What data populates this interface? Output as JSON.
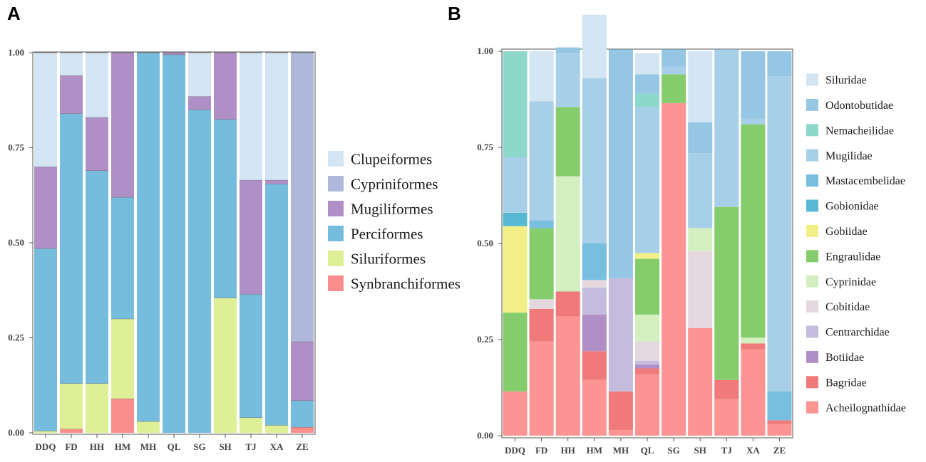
{
  "chart_data": [
    {
      "panel": "A",
      "type": "bar",
      "stacked": true,
      "categories": [
        "DDQ",
        "FD",
        "HH",
        "HM",
        "MH",
        "QL",
        "SG",
        "SH",
        "TJ",
        "XA",
        "ZE"
      ],
      "yticks": [
        "0.00",
        "0.25",
        "0.50",
        "0.75",
        "1.00"
      ],
      "ylim": [
        0,
        1
      ],
      "series": [
        {
          "name": "Synbranchiformes",
          "color": "#fc8d8d",
          "values": [
            0.0,
            0.01,
            0.0,
            0.09,
            0.0,
            0.0,
            0.0,
            0.0,
            0.0,
            0.0,
            0.015
          ]
        },
        {
          "name": "Siluriformes",
          "color": "#dfef96",
          "values": [
            0.005,
            0.12,
            0.13,
            0.21,
            0.03,
            0.0,
            0.0,
            0.355,
            0.04,
            0.02,
            0.0
          ]
        },
        {
          "name": "Perciformes",
          "color": "#75bcdd",
          "values": [
            0.48,
            0.71,
            0.56,
            0.32,
            0.97,
            0.995,
            0.85,
            0.47,
            0.325,
            0.635,
            0.07
          ]
        },
        {
          "name": "Mugiliformes",
          "color": "#b08fc7",
          "values": [
            0.215,
            0.1,
            0.14,
            0.38,
            0.0,
            0.005,
            0.035,
            0.175,
            0.3,
            0.01,
            0.155
          ]
        },
        {
          "name": "Cypriniformes",
          "color": "#afb8da",
          "values": [
            0.0,
            0.0,
            0.0,
            0.0,
            0.0,
            0.0,
            0.0,
            0.0,
            0.0,
            0.0,
            0.76
          ]
        },
        {
          "name": "Clupeiformes",
          "color": "#d3e5f3",
          "values": [
            0.3,
            0.06,
            0.17,
            0.0,
            0.0,
            0.0,
            0.115,
            0.0,
            0.335,
            0.335,
            0.0
          ]
        }
      ],
      "legend": [
        "Clupeiformes",
        "Cypriniformes",
        "Mugiliformes",
        "Perciformes",
        "Siluriformes",
        "Synbranchiformes"
      ]
    },
    {
      "panel": "B",
      "type": "bar",
      "stacked": true,
      "categories": [
        "DDQ",
        "FD",
        "HH",
        "HM",
        "MH",
        "QL",
        "SG",
        "SH",
        "TJ",
        "XA",
        "ZE"
      ],
      "yticks": [
        "0.00",
        "0.25",
        "0.50",
        "0.75",
        "1.00"
      ],
      "ylim": [
        0,
        1
      ],
      "series": [
        {
          "name": "Acheilognathidae",
          "color": "#fc9494",
          "values": [
            0.115,
            0.245,
            0.31,
            0.145,
            0.015,
            0.16,
            0.865,
            0.28,
            0.095,
            0.225,
            0.03
          ]
        },
        {
          "name": "Bagridae",
          "color": "#f07a7a",
          "values": [
            0.0,
            0.085,
            0.065,
            0.075,
            0.1,
            0.015,
            0.0,
            0.0,
            0.05,
            0.015,
            0.01
          ]
        },
        {
          "name": "Botiidae",
          "color": "#b08fc7",
          "values": [
            0.0,
            0.0,
            0.0,
            0.095,
            0.0,
            0.01,
            0.0,
            0.0,
            0.0,
            0.0,
            0.0
          ]
        },
        {
          "name": "Centrarchidae",
          "color": "#c3bcdc",
          "values": [
            0.0,
            0.0,
            0.0,
            0.07,
            0.295,
            0.01,
            0.0,
            0.0,
            0.0,
            0.0,
            0.0
          ]
        },
        {
          "name": "Cobitidae",
          "color": "#e4d8de",
          "values": [
            0.0,
            0.025,
            0.0,
            0.02,
            0.0,
            0.05,
            0.0,
            0.2,
            0.0,
            0.0,
            0.0
          ]
        },
        {
          "name": "Cyprinidae",
          "color": "#d3efc0",
          "values": [
            0.0,
            0.0,
            0.3,
            0.0,
            0.0,
            0.07,
            0.0,
            0.06,
            0.0,
            0.015,
            0.0
          ]
        },
        {
          "name": "Engraulidae",
          "color": "#85cd6c",
          "values": [
            0.205,
            0.185,
            0.18,
            0.0,
            0.0,
            0.145,
            0.075,
            0.0,
            0.45,
            0.555,
            0.0
          ]
        },
        {
          "name": "Gobiidae",
          "color": "#f1ef85",
          "values": [
            0.225,
            0.0,
            0.0,
            0.0,
            0.0,
            0.015,
            0.0,
            0.0,
            0.0,
            0.0,
            0.0
          ]
        },
        {
          "name": "Gobionidae",
          "color": "#58b9d3",
          "values": [
            0.035,
            0.0,
            0.0,
            0.0,
            0.0,
            0.0,
            0.0,
            0.0,
            0.0,
            0.0,
            0.0
          ]
        },
        {
          "name": "Mastacembelidae",
          "color": "#78bedf",
          "values": [
            0.0,
            0.02,
            0.0,
            0.095,
            0.0,
            0.0,
            0.0,
            0.0,
            0.0,
            0.0,
            0.075
          ]
        },
        {
          "name": "Mugilidae",
          "color": "#a7cfe8",
          "values": [
            0.145,
            0.31,
            0.14,
            0.43,
            0.0,
            0.38,
            0.02,
            0.195,
            0.41,
            0.015,
            0.82
          ]
        },
        {
          "name": "Nemacheilidae",
          "color": "#8dd7cb",
          "values": [
            0.275,
            0.0,
            0.0,
            0.0,
            0.0,
            0.035,
            0.0,
            0.0,
            0.0,
            0.0,
            0.0
          ]
        },
        {
          "name": "Odontobutidae",
          "color": "#95c7e4",
          "values": [
            0.0,
            0.0,
            0.015,
            0.0,
            0.595,
            0.05,
            0.045,
            0.08,
            0.0,
            0.175,
            0.065
          ]
        },
        {
          "name": "Siluridae",
          "color": "#d3e5f3",
          "values": [
            0.0,
            0.13,
            0.0,
            0.165,
            0.0,
            0.055,
            0.0,
            0.185,
            0.0,
            0.0,
            0.0
          ]
        }
      ],
      "legend": [
        "Siluridae",
        "Odontobutidae",
        "Nemacheilidae",
        "Mugilidae",
        "Mastacembelidae",
        "Gobionidae",
        "Gobiidae",
        "Engraulidae",
        "Cyprinidae",
        "Cobitidae",
        "Centrarchidae",
        "Botiidae",
        "Bagridae",
        "Acheilognathidae"
      ]
    }
  ]
}
